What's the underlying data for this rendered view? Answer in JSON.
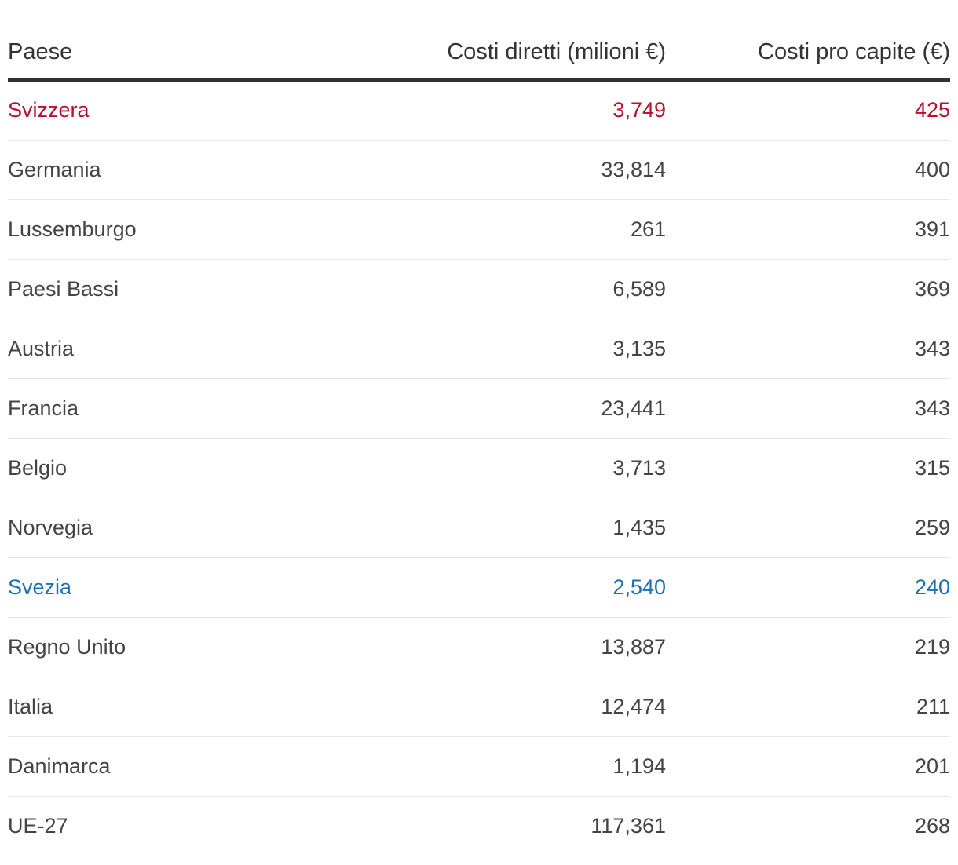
{
  "table": {
    "columns": [
      "Paese",
      "Costi diretti (milioni €)",
      "Costi pro capite (€)"
    ],
    "rows": [
      {
        "country": "Svizzera",
        "direct": "3,749",
        "per_capita": "425",
        "highlight": "red"
      },
      {
        "country": "Germania",
        "direct": "33,814",
        "per_capita": "400",
        "highlight": ""
      },
      {
        "country": "Lussemburgo",
        "direct": "261",
        "per_capita": "391",
        "highlight": ""
      },
      {
        "country": "Paesi Bassi",
        "direct": "6,589",
        "per_capita": "369",
        "highlight": ""
      },
      {
        "country": "Austria",
        "direct": "3,135",
        "per_capita": "343",
        "highlight": ""
      },
      {
        "country": "Francia",
        "direct": "23,441",
        "per_capita": "343",
        "highlight": ""
      },
      {
        "country": "Belgio",
        "direct": "3,713",
        "per_capita": "315",
        "highlight": ""
      },
      {
        "country": "Norvegia",
        "direct": "1,435",
        "per_capita": "259",
        "highlight": ""
      },
      {
        "country": "Svezia",
        "direct": "2,540",
        "per_capita": "240",
        "highlight": "blue"
      },
      {
        "country": "Regno Unito",
        "direct": "13,887",
        "per_capita": "219",
        "highlight": ""
      },
      {
        "country": "Italia",
        "direct": "12,474",
        "per_capita": "211",
        "highlight": ""
      },
      {
        "country": "Danimarca",
        "direct": "1,194",
        "per_capita": "201",
        "highlight": ""
      },
      {
        "country": "UE-27",
        "direct": "117,361",
        "per_capita": "268",
        "highlight": ""
      }
    ]
  },
  "colors": {
    "text": "#444444",
    "header_text": "#333333",
    "highlight_red": "#b8102e",
    "highlight_blue": "#1f6fb4",
    "header_rule": "#333333",
    "row_rule": "#e6e6e6"
  }
}
